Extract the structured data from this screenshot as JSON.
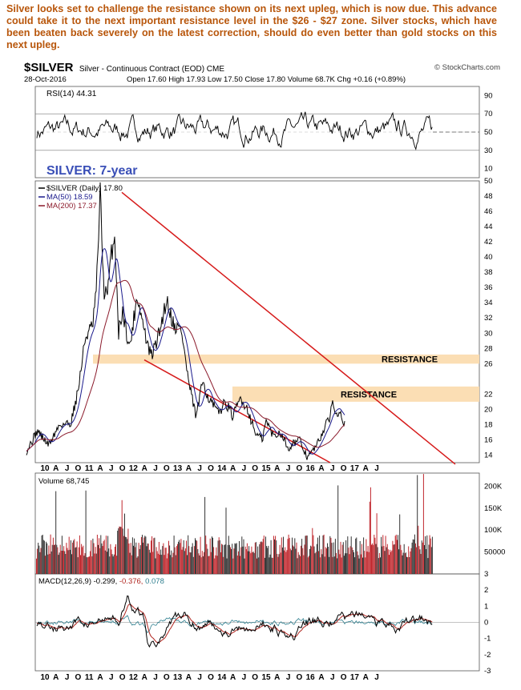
{
  "caption": "Silver looks set to challenge the resistance shown on its next upleg, which is now due. This advance could take it to the next important resistance level in the $26 - $27 zone. Silver stocks, which have been beaten back severely on the latest correction, should do even better than gold stocks on this next upleg.",
  "header": {
    "ticker": "$SILVER",
    "description": "Silver - Continuous Contract (EOD) CME",
    "credit": "© StockCharts.com",
    "date": "28-Oct-2016",
    "ohlc": "Open 17.60  High 17.93  Low 17.50  Close 17.80  Volume 68.7K  Chg +0.16 (+0.89%)"
  },
  "colors": {
    "price": "#000000",
    "ma50": "#1a1a8c",
    "ma200": "#8b1a2b",
    "channel": "#d61a1a",
    "resistance_band": "#fbdcb0",
    "volume_up": "#c0272d",
    "volume_down": "#333333",
    "macd": "#000000",
    "macd_signal": "#b0251f",
    "macd_hist": "#2f7f8f",
    "title_blue": "#3a4fb7",
    "caption": "#b8560b"
  },
  "chart_data": [
    {
      "type": "line",
      "panel": "rsi",
      "title": "RSI(14) 44.31",
      "ylim": [
        0,
        100
      ],
      "y_ticks": [
        90,
        70,
        50,
        30,
        10
      ],
      "reference_lines": [
        70,
        30
      ],
      "series": [
        {
          "name": "RSI(14)",
          "last": 44.31
        }
      ]
    },
    {
      "type": "line",
      "panel": "price",
      "title": "SILVER: 7-year",
      "x": [
        "2009-08",
        "2009-11",
        "2010-02",
        "2010-05",
        "2010-08",
        "2010-10",
        "2010-12",
        "2011-02",
        "2011-03",
        "2011-04",
        "2011-05",
        "2011-06",
        "2011-07",
        "2011-08",
        "2011-09",
        "2011-10",
        "2011-12",
        "2012-02",
        "2012-05",
        "2012-06",
        "2012-08",
        "2012-10",
        "2012-12",
        "2013-02",
        "2013-04",
        "2013-06",
        "2013-08",
        "2013-09",
        "2013-12",
        "2014-02",
        "2014-04",
        "2014-06",
        "2014-08",
        "2014-10",
        "2014-12",
        "2015-01",
        "2015-03",
        "2015-05",
        "2015-07",
        "2015-08",
        "2015-10",
        "2015-12",
        "2016-01",
        "2016-03",
        "2016-05",
        "2016-06",
        "2016-07",
        "2016-08",
        "2016-09",
        "2016-10-28"
      ],
      "series": [
        {
          "name": "$SILVER (Daily) 17.80",
          "values": [
            14.5,
            17.2,
            15.3,
            18.0,
            18.2,
            22.5,
            29.5,
            31.0,
            36.0,
            48.5,
            35.5,
            35.0,
            40.5,
            42.5,
            30.0,
            33.0,
            28.0,
            35.0,
            28.0,
            27.0,
            30.0,
            34.5,
            31.0,
            30.5,
            23.5,
            19.0,
            24.0,
            21.8,
            19.5,
            21.0,
            19.0,
            21.5,
            20.0,
            17.0,
            16.0,
            18.5,
            16.5,
            17.0,
            14.8,
            15.5,
            16.0,
            13.8,
            14.1,
            15.5,
            17.8,
            18.5,
            21.0,
            19.5,
            20.0,
            17.8
          ]
        },
        {
          "name": "MA(50) 18.59"
        },
        {
          "name": "MA(200) 17.37"
        }
      ],
      "ylim": [
        13,
        50
      ],
      "y_ticks": [
        14,
        16,
        18,
        20,
        22,
        26,
        28,
        30,
        32,
        34,
        36,
        38,
        40,
        42,
        44,
        46,
        48,
        50
      ],
      "annotations": [
        "RESISTANCE",
        "RESISTANCE"
      ],
      "resistance_zones": [
        [
          26,
          27.2
        ],
        [
          21,
          23
        ]
      ],
      "x_ticks": [
        "10",
        "A",
        "J",
        "O",
        "11",
        "A",
        "J",
        "O",
        "12",
        "A",
        "J",
        "O",
        "13",
        "A",
        "J",
        "O",
        "14",
        "A",
        "J",
        "O",
        "15",
        "A",
        "J",
        "O",
        "16",
        "A",
        "J",
        "O",
        "17",
        "A",
        "J"
      ]
    },
    {
      "type": "bar",
      "panel": "volume",
      "title": "Volume 68,745",
      "y_ticks": [
        "200K",
        "150K",
        "100K",
        "50000"
      ]
    },
    {
      "type": "line",
      "panel": "macd",
      "title": "MACD(12,26,9)",
      "values_text": "-0.299, -0.376, 0.078",
      "values_colors": [
        "#000000",
        "#b0251f",
        "#2f7f8f"
      ],
      "ylim": [
        -3,
        3
      ],
      "y_ticks": [
        3,
        2,
        1,
        0,
        -1,
        -2,
        -3
      ]
    }
  ]
}
